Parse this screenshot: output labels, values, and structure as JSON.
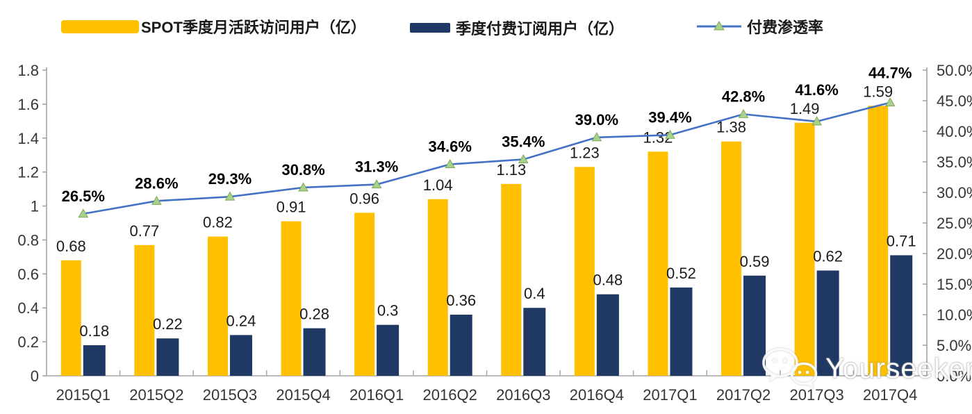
{
  "legend": [
    {
      "label": "SPOT季度月活跃访问用户（亿）",
      "swatch": "bar",
      "color": "#FFC000"
    },
    {
      "label": "季度付费订阅用户（亿）",
      "swatch": "bar",
      "color": "#1F3864"
    },
    {
      "label": "付费渗透率",
      "swatch": "line-marker",
      "line_color": "#4472C4",
      "marker_color": "#A9D18E"
    }
  ],
  "watermark": {
    "text": "Yourseeker",
    "icon": "wechat-icon"
  },
  "chart_data": {
    "type": "bar",
    "subtype": "grouped bars + line on secondary axis",
    "categories": [
      "2015Q1",
      "2015Q2",
      "2015Q3",
      "2015Q4",
      "2016Q1",
      "2016Q2",
      "2016Q3",
      "2016Q4",
      "2017Q1",
      "2017Q2",
      "2017Q3",
      "2017Q4"
    ],
    "series": [
      {
        "name": "SPOT季度月活跃访问用户（亿）",
        "type": "bar",
        "axis": "left",
        "color": "#FFC000",
        "values": [
          0.68,
          0.77,
          0.82,
          0.91,
          0.96,
          1.04,
          1.13,
          1.23,
          1.32,
          1.38,
          1.49,
          1.59
        ],
        "labels": [
          "0.68",
          "0.77",
          "0.82",
          "0.91",
          "0.96",
          "1.04",
          "1.13",
          "1.23",
          "1.32",
          "1.38",
          "1.49",
          "1.59"
        ]
      },
      {
        "name": "季度付费订阅用户（亿）",
        "type": "bar",
        "axis": "left",
        "color": "#1F3864",
        "values": [
          0.18,
          0.22,
          0.24,
          0.28,
          0.3,
          0.36,
          0.4,
          0.48,
          0.52,
          0.59,
          0.62,
          0.71
        ],
        "labels": [
          "0.18",
          "0.22",
          "0.24",
          "0.28",
          "0.3",
          "0.36",
          "0.4",
          "0.48",
          "0.52",
          "0.59",
          "0.62",
          "0.71"
        ]
      },
      {
        "name": "付费渗透率",
        "type": "line",
        "axis": "right",
        "color": "#4472C4",
        "marker": "triangle",
        "marker_color": "#A9D18E",
        "values": [
          26.5,
          28.6,
          29.3,
          30.8,
          31.3,
          34.6,
          35.4,
          39.0,
          39.4,
          42.8,
          41.6,
          44.7
        ],
        "labels": [
          "26.5%",
          "28.6%",
          "29.3%",
          "30.8%",
          "31.3%",
          "34.6%",
          "35.4%",
          "39.0%",
          "39.4%",
          "42.8%",
          "41.6%",
          "44.7%"
        ]
      }
    ],
    "left_axis": {
      "min": 0,
      "max": 1.8,
      "step": 0.2,
      "tick_labels": [
        "0",
        "0.2",
        "0.4",
        "0.6",
        "0.8",
        "1",
        "1.2",
        "1.4",
        "1.6",
        "1.8"
      ]
    },
    "right_axis": {
      "min": 0,
      "max": 50,
      "step": 5,
      "tick_labels": [
        "0.0%",
        "5.0%",
        "10.0%",
        "15.0%",
        "20.0%",
        "25.0%",
        "30.0%",
        "35.0%",
        "40.0%",
        "45.0%",
        "50.0%"
      ]
    },
    "grid": "off",
    "legend_position": "top",
    "data_labels": "on"
  }
}
